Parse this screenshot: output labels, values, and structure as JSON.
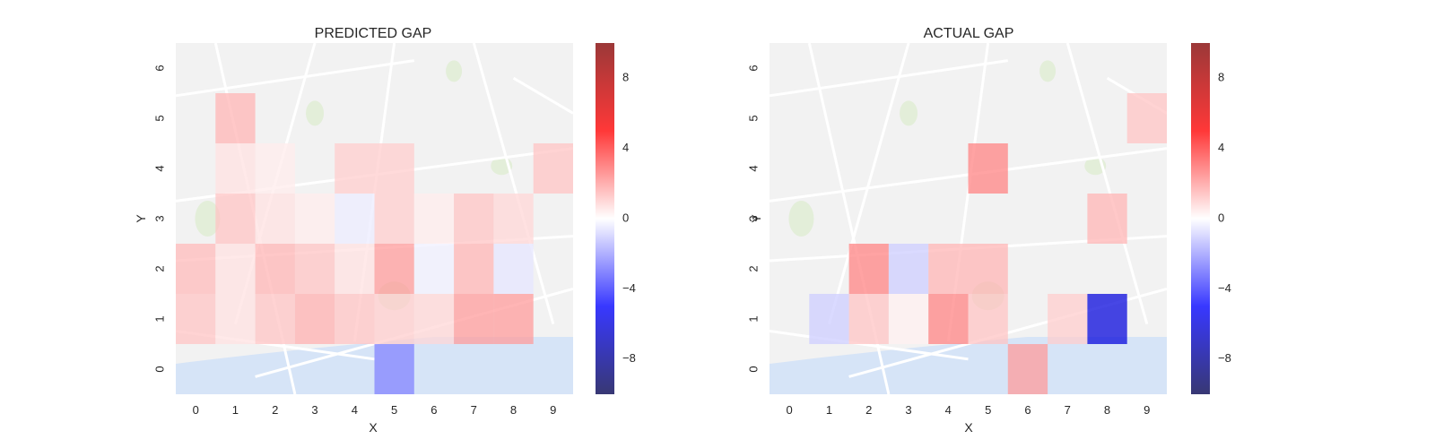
{
  "chart_data": [
    {
      "type": "heatmap",
      "title": "PREDICTED GAP",
      "xlabel": "X",
      "ylabel": "Y",
      "x_ticks": [
        "0",
        "1",
        "2",
        "3",
        "4",
        "5",
        "6",
        "7",
        "8",
        "9"
      ],
      "y_ticks": [
        "0",
        "1",
        "2",
        "3",
        "4",
        "5",
        "6"
      ],
      "grid": false,
      "background": "street-map",
      "colorbar": {
        "ticks": [
          "-8",
          "-4",
          "0",
          "4",
          "8"
        ],
        "vmin": -10,
        "vmax": 10,
        "cmap": "seismic"
      },
      "cells": [
        {
          "x": 5,
          "y": 0,
          "value": -2.5
        },
        {
          "x": 0,
          "y": 1,
          "value": 1.2
        },
        {
          "x": 1,
          "y": 1,
          "value": 0.6
        },
        {
          "x": 2,
          "y": 1,
          "value": 1.2
        },
        {
          "x": 3,
          "y": 1,
          "value": 1.6
        },
        {
          "x": 4,
          "y": 1,
          "value": 1.2
        },
        {
          "x": 5,
          "y": 1,
          "value": 1.0
        },
        {
          "x": 6,
          "y": 1,
          "value": 0.8
        },
        {
          "x": 7,
          "y": 1,
          "value": 2.0
        },
        {
          "x": 8,
          "y": 1,
          "value": 2.0
        },
        {
          "x": 0,
          "y": 2,
          "value": 1.4
        },
        {
          "x": 1,
          "y": 2,
          "value": 0.6
        },
        {
          "x": 2,
          "y": 2,
          "value": 1.5
        },
        {
          "x": 3,
          "y": 2,
          "value": 1.2
        },
        {
          "x": 4,
          "y": 2,
          "value": 0.6
        },
        {
          "x": 5,
          "y": 2,
          "value": 2.0
        },
        {
          "x": 6,
          "y": 2,
          "value": -0.3
        },
        {
          "x": 7,
          "y": 2,
          "value": 1.5
        },
        {
          "x": 8,
          "y": 2,
          "value": -0.5
        },
        {
          "x": 1,
          "y": 3,
          "value": 1.2
        },
        {
          "x": 2,
          "y": 3,
          "value": 0.6
        },
        {
          "x": 3,
          "y": 3,
          "value": 0.4
        },
        {
          "x": 4,
          "y": 3,
          "value": -0.4
        },
        {
          "x": 5,
          "y": 3,
          "value": 1.0
        },
        {
          "x": 6,
          "y": 3,
          "value": 0.4
        },
        {
          "x": 7,
          "y": 3,
          "value": 1.2
        },
        {
          "x": 8,
          "y": 3,
          "value": 0.8
        },
        {
          "x": 1,
          "y": 4,
          "value": 0.6
        },
        {
          "x": 2,
          "y": 4,
          "value": 0.4
        },
        {
          "x": 4,
          "y": 4,
          "value": 1.0
        },
        {
          "x": 5,
          "y": 4,
          "value": 1.0
        },
        {
          "x": 9,
          "y": 4,
          "value": 1.2
        },
        {
          "x": 1,
          "y": 5,
          "value": 1.5
        }
      ]
    },
    {
      "type": "heatmap",
      "title": "ACTUAL GAP",
      "xlabel": "X",
      "ylabel": "Y",
      "x_ticks": [
        "0",
        "1",
        "2",
        "3",
        "4",
        "5",
        "6",
        "7",
        "8",
        "9"
      ],
      "y_ticks": [
        "0",
        "1",
        "2",
        "3",
        "4",
        "5",
        "6"
      ],
      "grid": false,
      "background": "street-map",
      "colorbar": {
        "ticks": [
          "-8",
          "-4",
          "0",
          "4",
          "8"
        ],
        "vmin": -10,
        "vmax": 10,
        "cmap": "seismic"
      },
      "cells": [
        {
          "x": 6,
          "y": 0,
          "value": 2.0
        },
        {
          "x": 1,
          "y": 1,
          "value": -1.0
        },
        {
          "x": 2,
          "y": 1,
          "value": 1.2
        },
        {
          "x": 3,
          "y": 1,
          "value": 0.3
        },
        {
          "x": 4,
          "y": 1,
          "value": 2.5
        },
        {
          "x": 5,
          "y": 1,
          "value": 1.2
        },
        {
          "x": 7,
          "y": 1,
          "value": 1.0
        },
        {
          "x": 8,
          "y": 1,
          "value": -6.0
        },
        {
          "x": 2,
          "y": 2,
          "value": 2.5
        },
        {
          "x": 3,
          "y": 2,
          "value": -1.0
        },
        {
          "x": 4,
          "y": 2,
          "value": 1.5
        },
        {
          "x": 5,
          "y": 2,
          "value": 1.5
        },
        {
          "x": 8,
          "y": 3,
          "value": 1.5
        },
        {
          "x": 5,
          "y": 4,
          "value": 2.5
        },
        {
          "x": 9,
          "y": 5,
          "value": 1.2
        }
      ]
    }
  ]
}
